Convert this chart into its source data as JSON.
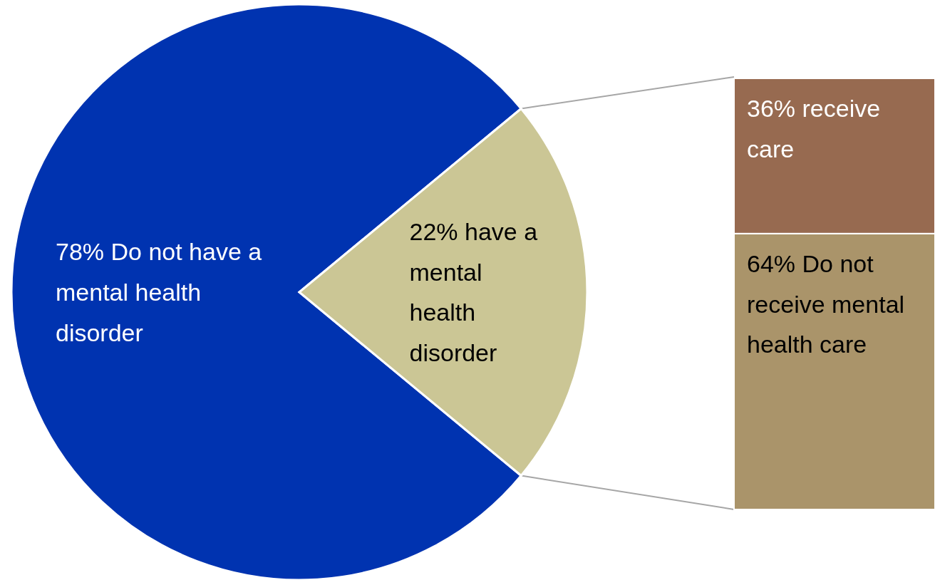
{
  "chart_data": [
    {
      "type": "pie",
      "categories": [
        "78% Do not have a mental health disorder",
        "22% have a mental health disorder"
      ],
      "values": [
        78,
        22
      ],
      "colors": [
        "#0033b0",
        "#cbc695"
      ]
    },
    {
      "type": "bar",
      "stacked": true,
      "categories": [
        null
      ],
      "series": [
        {
          "color": "#aa946a",
          "values": [
            64
          ],
          "value_labels": [
            "64% Do not receive mental health care"
          ]
        },
        {
          "color": "#976a50",
          "values": [
            36
          ],
          "value_labels": [
            "36% receive care"
          ]
        }
      ]
    }
  ]
}
